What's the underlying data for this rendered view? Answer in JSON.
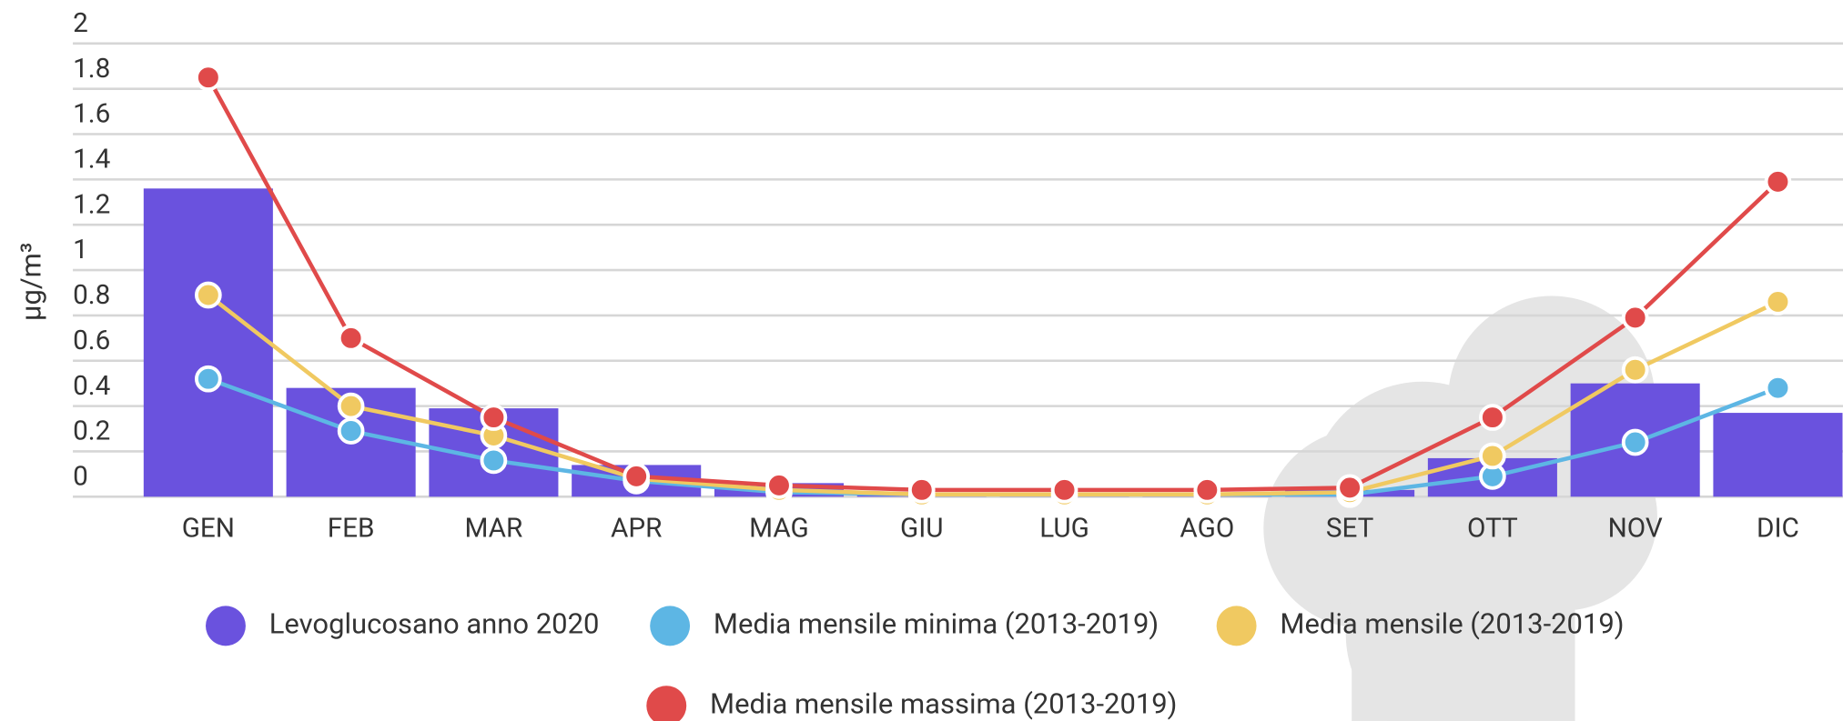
{
  "chart_data": {
    "type": "bar-line",
    "y_label": "µg/m³",
    "categories": [
      "GEN",
      "FEB",
      "MAR",
      "APR",
      "MAG",
      "GIU",
      "LUG",
      "AGO",
      "SET",
      "OTT",
      "NOV",
      "DIC"
    ],
    "ylim": [
      0,
      2
    ],
    "yticks": [
      0,
      0.2,
      0.4,
      0.6,
      0.8,
      1,
      1.2,
      1.4,
      1.6,
      1.8,
      2
    ],
    "grid": true,
    "series": [
      {
        "name": "Levoglucosano anno 2020",
        "type": "bar",
        "color": "#6a52de",
        "values": [
          1.36,
          0.48,
          0.39,
          0.14,
          0.06,
          0.01,
          0.01,
          0.01,
          0.03,
          0.17,
          0.5,
          0.37
        ]
      },
      {
        "name": "Media mensile minima (2013-2019)",
        "type": "line",
        "color": "#5db6e4",
        "values": [
          0.52,
          0.29,
          0.16,
          0.07,
          0.02,
          0.01,
          0.01,
          0.01,
          0.01,
          0.09,
          0.24,
          0.48
        ]
      },
      {
        "name": "Media mensile (2013-2019)",
        "type": "line",
        "color": "#f0c961",
        "values": [
          0.89,
          0.4,
          0.27,
          0.08,
          0.03,
          0.01,
          0.01,
          0.01,
          0.02,
          0.18,
          0.56,
          0.86
        ]
      },
      {
        "name": "Media mensile massima (2013-2019)",
        "type": "line",
        "color": "#e04a4a",
        "values": [
          1.85,
          0.7,
          0.35,
          0.09,
          0.05,
          0.03,
          0.03,
          0.03,
          0.04,
          0.35,
          0.79,
          1.39
        ]
      }
    ]
  }
}
